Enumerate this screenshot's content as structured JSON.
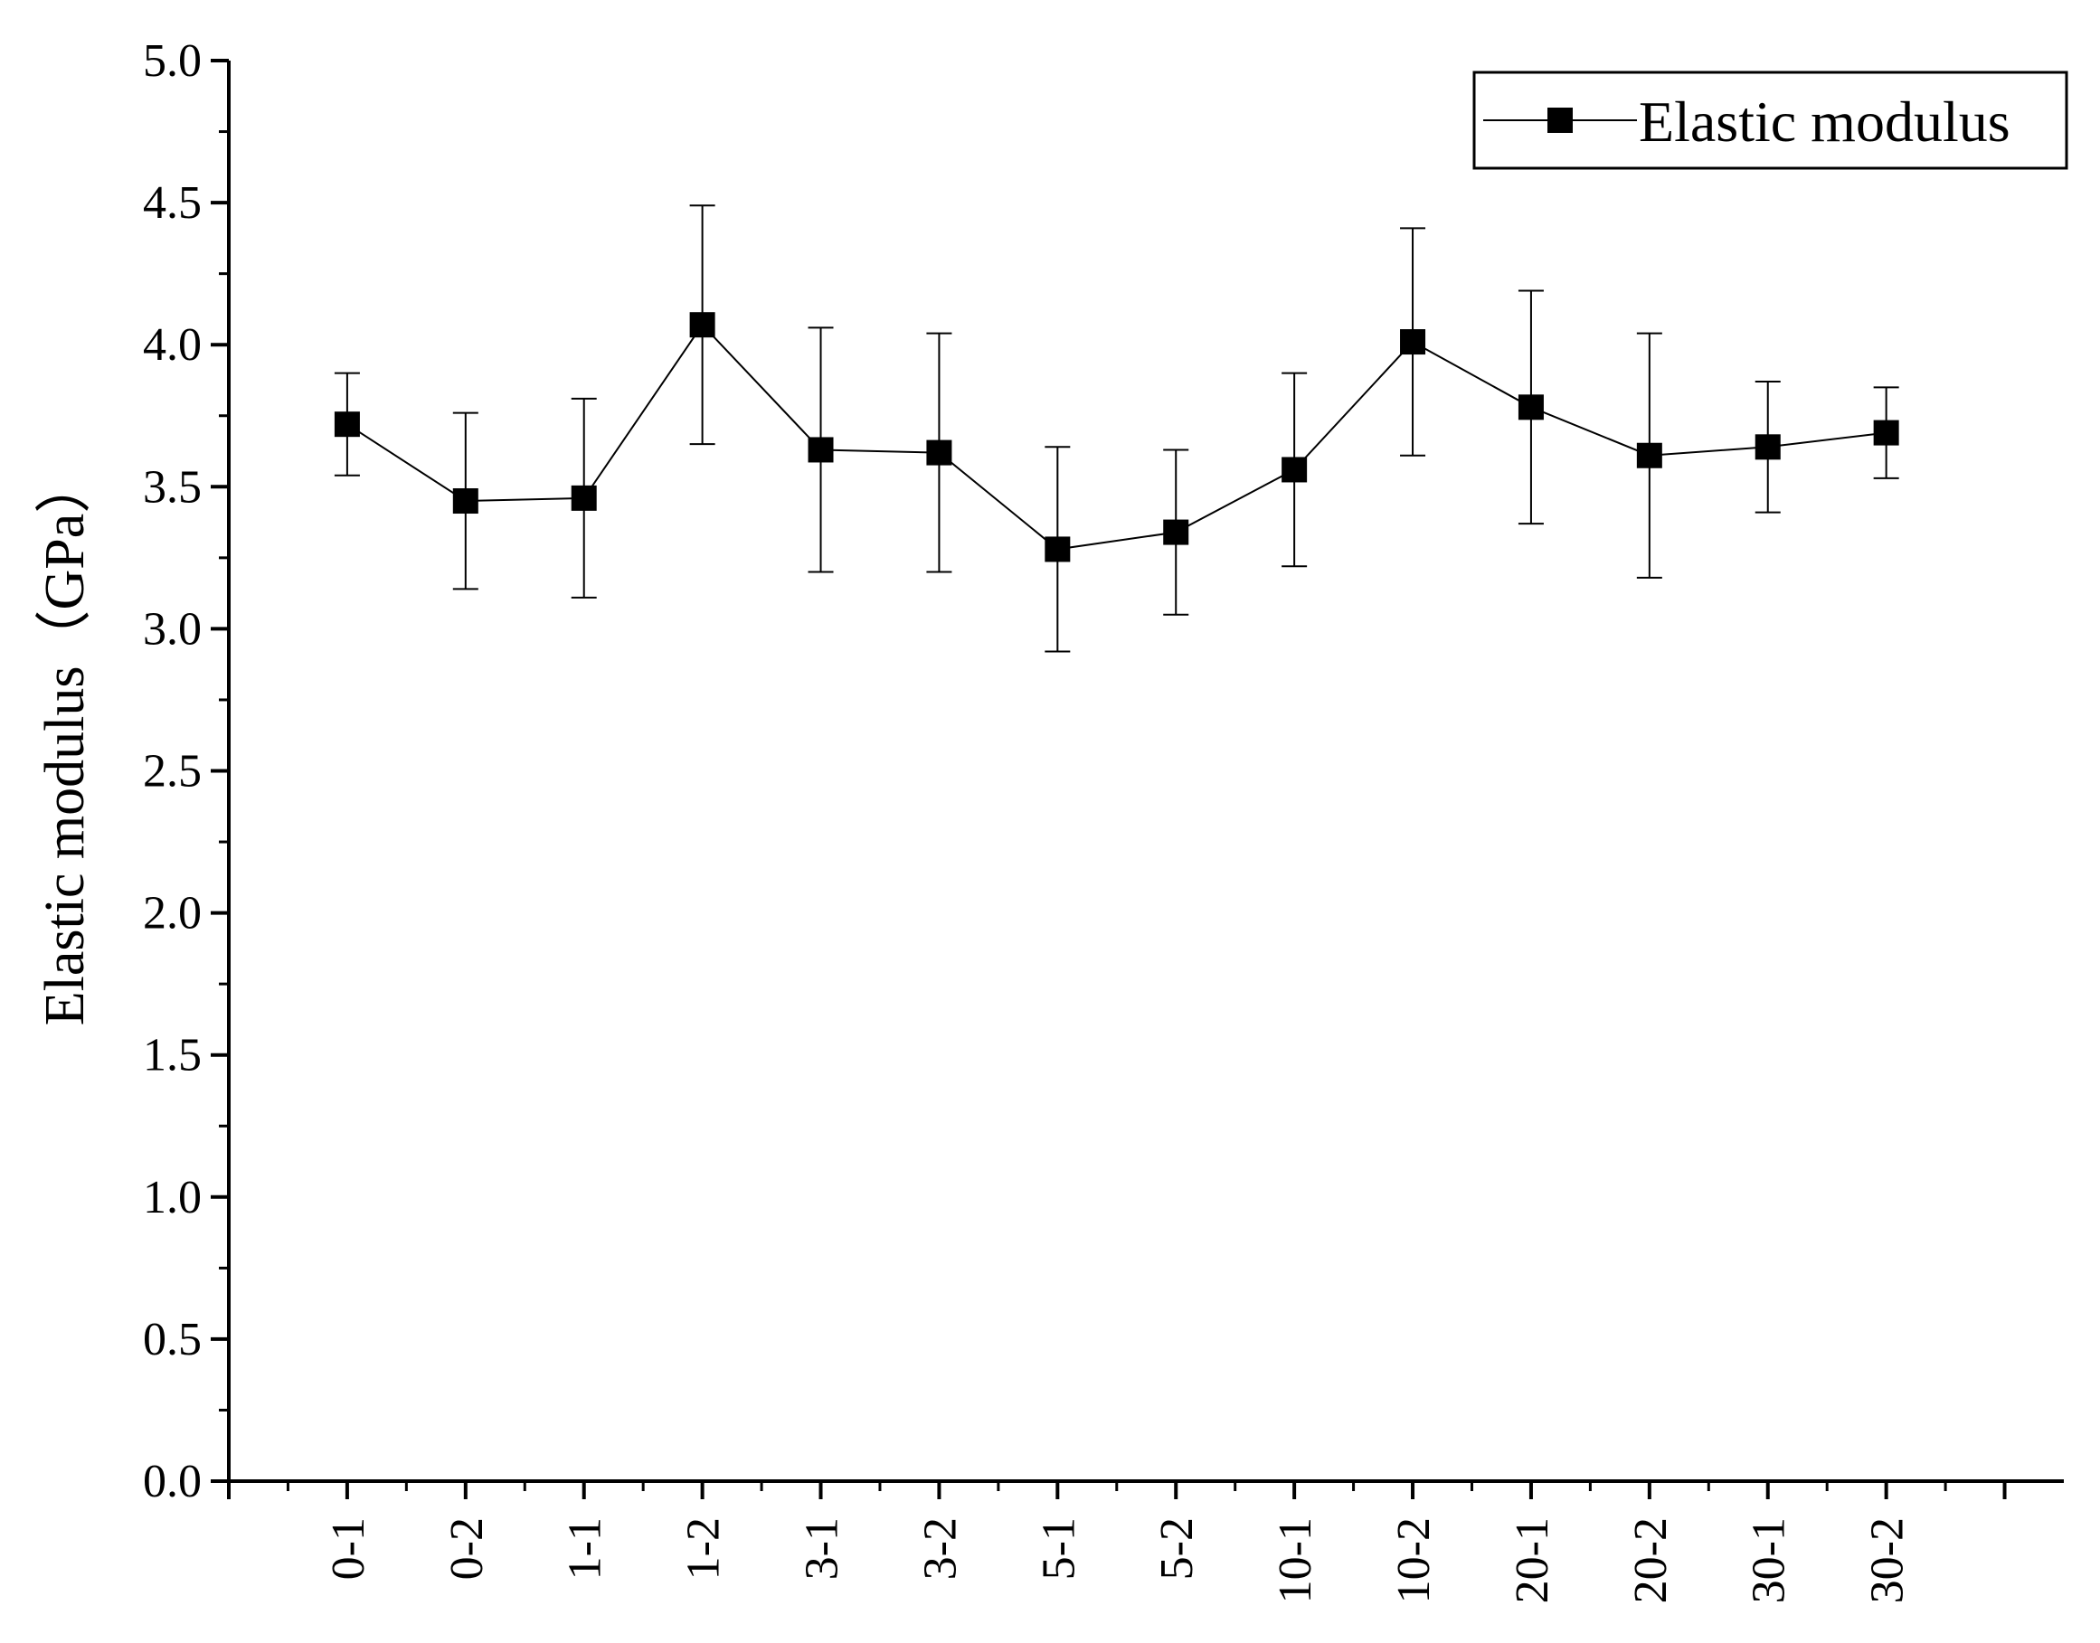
{
  "chart_data": {
    "type": "line",
    "title": "",
    "xlabel": "",
    "ylabel": "Elastic modulus（GPa）",
    "ylim": [
      0.0,
      5.0
    ],
    "yticks": [
      "0.0",
      "0.5",
      "1.0",
      "1.5",
      "2.0",
      "2.5",
      "3.0",
      "3.5",
      "4.0",
      "4.5",
      "5.0"
    ],
    "categories": [
      "0-1",
      "0-2",
      "1-1",
      "1-2",
      "3-1",
      "3-2",
      "5-1",
      "5-2",
      "10-1",
      "10-2",
      "20-1",
      "20-2",
      "30-1",
      "30-2"
    ],
    "series": [
      {
        "name": "Elastic modulus",
        "marker": "square",
        "color": "#000000",
        "values": [
          3.72,
          3.45,
          3.46,
          4.07,
          3.63,
          3.62,
          3.28,
          3.34,
          3.56,
          4.01,
          3.78,
          3.61,
          3.64,
          3.69
        ],
        "error": [
          0.18,
          0.31,
          0.35,
          0.42,
          0.43,
          0.42,
          0.36,
          0.29,
          0.34,
          0.4,
          0.41,
          0.43,
          0.23,
          0.16
        ]
      }
    ],
    "legend": {
      "position": "top-right",
      "boxed": true
    },
    "grid": false
  }
}
